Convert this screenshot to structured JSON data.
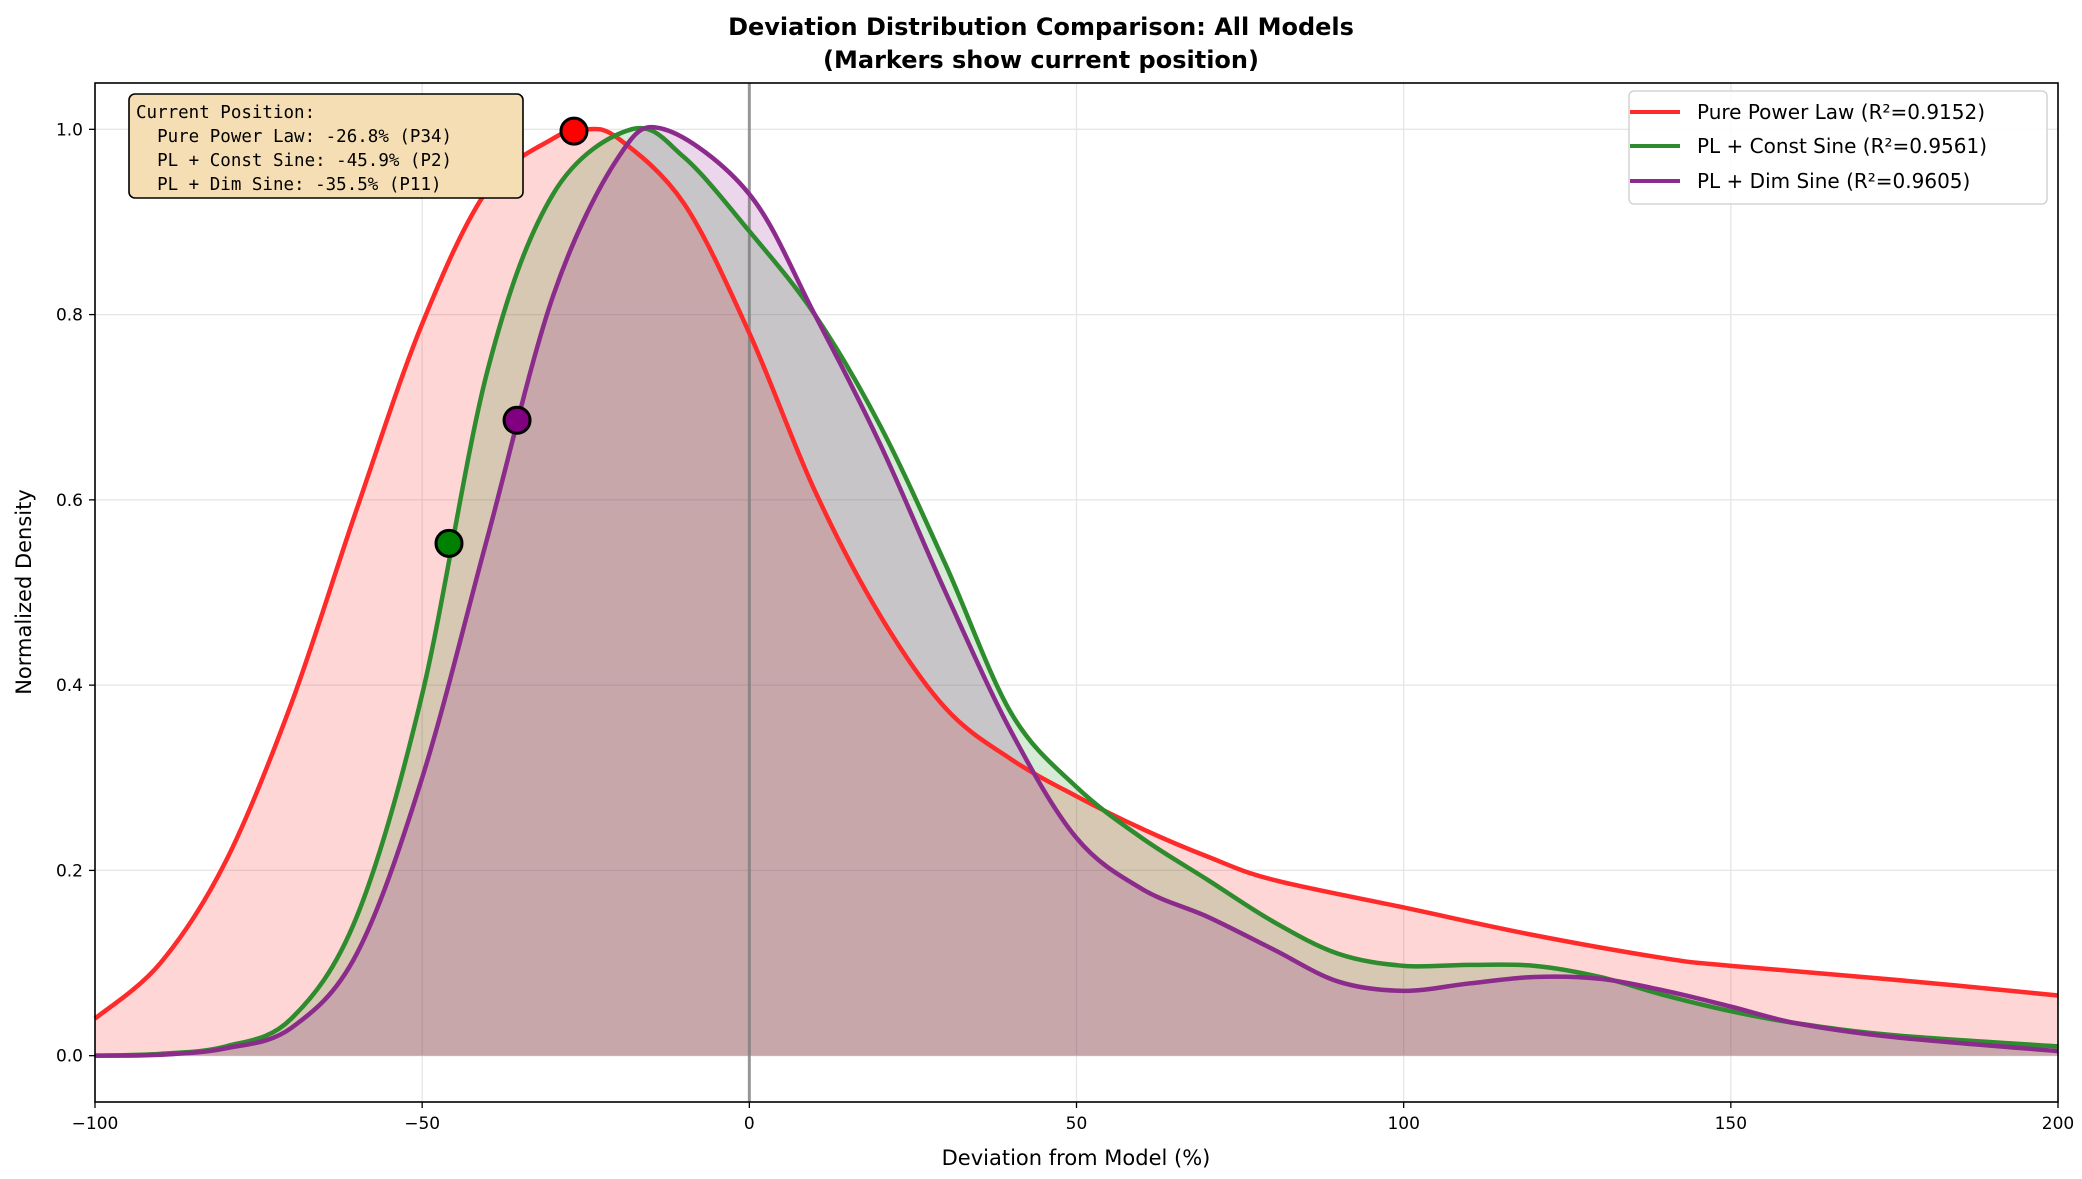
{
  "chart_data": {
    "type": "area",
    "title": "Deviation Distribution Comparison: All Models",
    "subtitle": "(Markers show current position)",
    "xlabel": "Deviation from Model (%)",
    "ylabel": "Normalized Density",
    "xlim": [
      -100,
      200
    ],
    "ylim": [
      -0.05,
      1.05
    ],
    "xticks": [
      -100,
      -50,
      0,
      50,
      100,
      150,
      200
    ],
    "xtick_labels": [
      "−100",
      "−50",
      "0",
      "50",
      "100",
      "150",
      "200"
    ],
    "yticks": [
      0.0,
      0.2,
      0.4,
      0.6,
      0.8,
      1.0
    ],
    "ytick_labels": [
      "0.0",
      "0.2",
      "0.4",
      "0.6",
      "0.8",
      "1.0"
    ],
    "grid": true,
    "legend_position": "top-right",
    "vertical_reference_line": 0,
    "series": [
      {
        "name": "Pure Power Law (R²=0.9152)",
        "color": "#ff2a2a",
        "fill": "#ff0000",
        "x": [
          -100,
          -90,
          -80,
          -70,
          -60,
          -50,
          -40,
          -30,
          -25,
          -20,
          -10,
          0,
          10,
          20,
          30,
          40,
          50,
          60,
          70,
          80,
          100,
          120,
          140,
          150,
          175,
          200
        ],
        "y": [
          0.04,
          0.1,
          0.21,
          0.38,
          0.59,
          0.79,
          0.935,
          0.99,
          1.0,
          0.99,
          0.92,
          0.78,
          0.61,
          0.475,
          0.375,
          0.32,
          0.28,
          0.245,
          0.215,
          0.19,
          0.16,
          0.13,
          0.105,
          0.097,
          0.082,
          0.065
        ],
        "marker": {
          "x": -26.8,
          "y": 0.998,
          "color": "#ff0000"
        }
      },
      {
        "name": "PL + Const Sine (R²=0.9561)",
        "color": "#2e8b2e",
        "fill": "#008000",
        "x": [
          -100,
          -90,
          -80,
          -70,
          -60,
          -50,
          -40,
          -30,
          -18,
          -10,
          0,
          10,
          20,
          30,
          40,
          50,
          60,
          70,
          80,
          90,
          100,
          110,
          120,
          130,
          140,
          150,
          160,
          175,
          200
        ],
        "y": [
          0,
          0.002,
          0.01,
          0.04,
          0.15,
          0.39,
          0.74,
          0.93,
          1.0,
          0.97,
          0.89,
          0.8,
          0.68,
          0.53,
          0.37,
          0.29,
          0.235,
          0.19,
          0.145,
          0.11,
          0.097,
          0.098,
          0.097,
          0.085,
          0.065,
          0.048,
          0.035,
          0.022,
          0.01
        ],
        "marker": {
          "x": -45.9,
          "y": 0.553,
          "color": "#008000"
        }
      },
      {
        "name": "PL + Dim Sine (R²=0.9605)",
        "color": "#8b2b8b",
        "fill": "#800080",
        "x": [
          -100,
          -90,
          -80,
          -70,
          -60,
          -50,
          -40,
          -30,
          -20,
          -13,
          0,
          10,
          20,
          30,
          40,
          50,
          60,
          70,
          80,
          90,
          100,
          110,
          120,
          130,
          140,
          150,
          160,
          175,
          200
        ],
        "y": [
          0,
          0.001,
          0.008,
          0.03,
          0.11,
          0.3,
          0.56,
          0.82,
          0.97,
          1.0,
          0.93,
          0.8,
          0.66,
          0.5,
          0.35,
          0.235,
          0.18,
          0.15,
          0.115,
          0.08,
          0.07,
          0.078,
          0.085,
          0.083,
          0.07,
          0.053,
          0.035,
          0.02,
          0.005
        ],
        "marker": {
          "x": -35.5,
          "y": 0.686,
          "color": "#800080"
        }
      }
    ],
    "annotation": {
      "title": "Current Position:",
      "lines": [
        "  Pure Power Law: -26.8% (P34)",
        "  PL + Const Sine: -45.9% (P2)",
        "  PL + Dim Sine: -35.5% (P11)"
      ],
      "background": "#f5deb3"
    }
  }
}
